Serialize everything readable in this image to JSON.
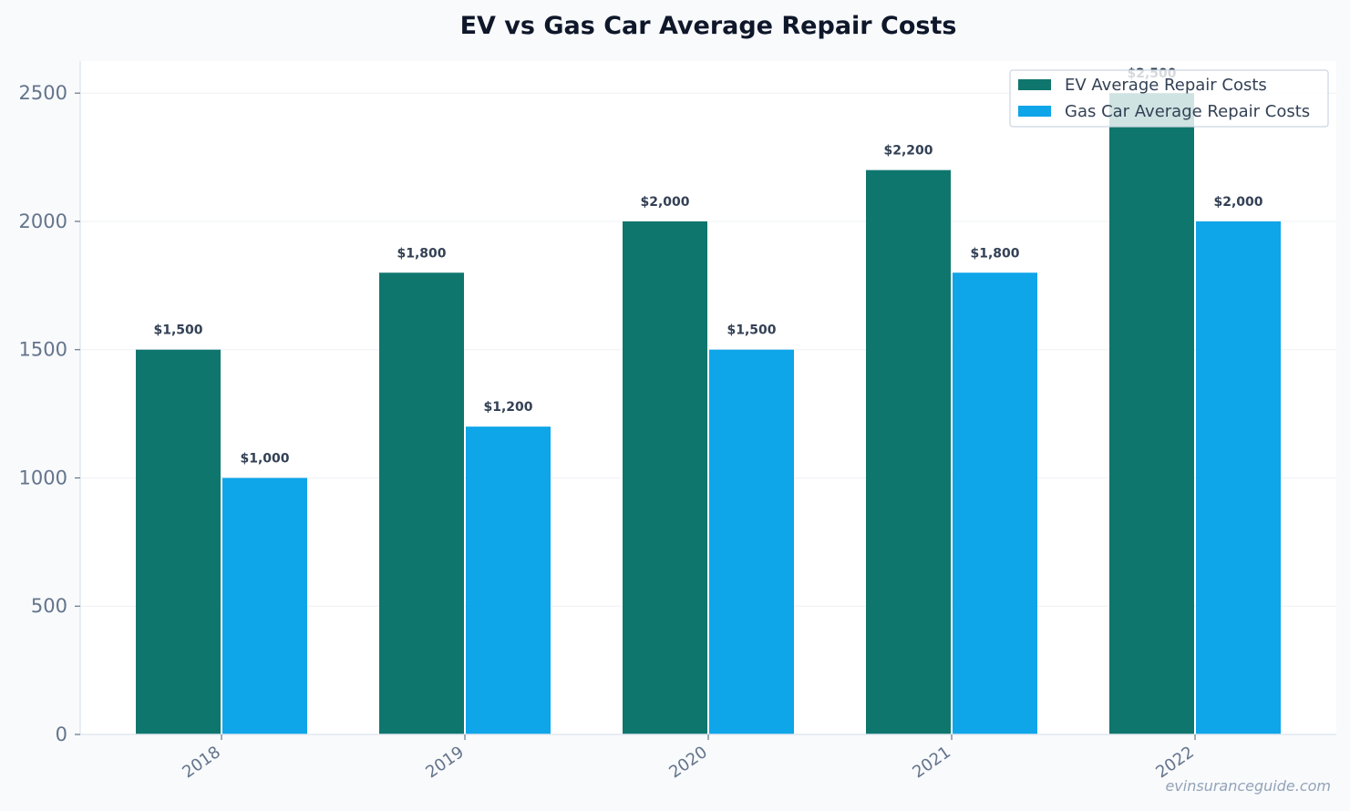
{
  "chart_data": {
    "type": "bar",
    "title": "EV vs Gas Car Average Repair Costs",
    "categories": [
      "2018",
      "2019",
      "2020",
      "2021",
      "2022"
    ],
    "series": [
      {
        "name": "EV Average Repair Costs",
        "color": "#0f766e",
        "values": [
          1500,
          1800,
          2000,
          2200,
          2500
        ],
        "labels": [
          "$1,500",
          "$1,800",
          "$2,000",
          "$2,200",
          "$2,500"
        ]
      },
      {
        "name": "Gas Car Average Repair Costs",
        "color": "#0ea5e9",
        "values": [
          1000,
          1200,
          1500,
          1800,
          2000
        ],
        "labels": [
          "$1,000",
          "$1,200",
          "$1,500",
          "$1,800",
          "$2,000"
        ]
      }
    ],
    "y_ticks": [
      0,
      500,
      1000,
      1500,
      2000,
      2500
    ],
    "ylim": [
      0,
      2625
    ],
    "grid": true,
    "legend_position": "top-right",
    "watermark": "evinsuranceguide.com"
  }
}
